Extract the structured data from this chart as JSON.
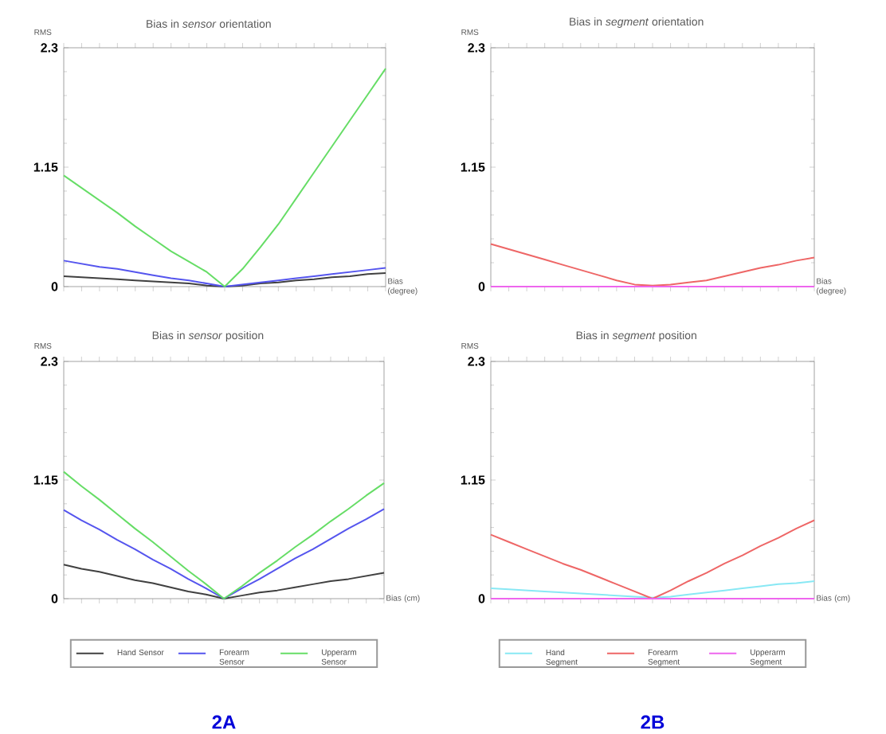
{
  "chart_data": [
    {
      "type": "line",
      "title": "Bias in *sensor* orientation",
      "ylabel": "RMS",
      "xlabel": "Bias (degree)",
      "categories": [
        null,
        null,
        null,
        null,
        null,
        null,
        null,
        null,
        null,
        null,
        null,
        null,
        null,
        null,
        null,
        null,
        null,
        null,
        null
      ],
      "ylim": [
        0,
        2.3
      ],
      "yticks": [
        0,
        1.15,
        2.3
      ],
      "legend": false,
      "series": [
        {
          "color": "#404040",
          "values": [
            0.1,
            0.09,
            0.08,
            0.07,
            0.06,
            0.05,
            0.04,
            0.03,
            0.01,
            0,
            0.01,
            0.03,
            0.04,
            0.06,
            0.07,
            0.09,
            0.1,
            0.12,
            0.13
          ]
        },
        {
          "color": "#5555ee",
          "values": [
            0.25,
            0.22,
            0.19,
            0.17,
            0.14,
            0.11,
            0.08,
            0.06,
            0.03,
            0,
            0.02,
            0.04,
            0.06,
            0.08,
            0.1,
            0.12,
            0.14,
            0.16,
            0.18
          ]
        },
        {
          "color": "#66dd66",
          "values": [
            1.07,
            0.95,
            0.83,
            0.71,
            0.58,
            0.46,
            0.34,
            0.24,
            0.14,
            0,
            0.17,
            0.38,
            0.6,
            0.85,
            1.1,
            1.35,
            1.6,
            1.85,
            2.1
          ]
        }
      ]
    },
    {
      "type": "line",
      "title": "Bias in *segment* orientation",
      "ylabel": "RMS",
      "xlabel": "Bias (degree)",
      "categories": [
        null,
        null,
        null,
        null,
        null,
        null,
        null,
        null,
        null,
        null,
        null,
        null,
        null,
        null,
        null,
        null,
        null,
        null,
        null
      ],
      "ylim": [
        0,
        2.3
      ],
      "yticks": [
        0,
        1.15,
        2.3
      ],
      "legend": false,
      "series": [
        {
          "color": "#ee6666",
          "values": [
            0.41,
            0.36,
            0.31,
            0.26,
            0.21,
            0.16,
            0.11,
            0.06,
            0.02,
            0.01,
            0.02,
            0.04,
            0.06,
            0.1,
            0.14,
            0.18,
            0.21,
            0.25,
            0.28
          ]
        },
        {
          "color": "#ee66ee",
          "values": [
            0,
            0,
            0,
            0,
            0,
            0,
            0,
            0,
            0,
            0,
            0,
            0,
            0,
            0,
            0,
            0,
            0,
            0,
            0
          ]
        }
      ]
    },
    {
      "type": "line",
      "title": "Bias in *sensor* position",
      "ylabel": "RMS",
      "xlabel": "Bias (cm)",
      "categories": [
        null,
        null,
        null,
        null,
        null,
        null,
        null,
        null,
        null,
        null,
        null,
        null,
        null,
        null,
        null,
        null,
        null,
        null,
        null
      ],
      "ylim": [
        0,
        2.3
      ],
      "yticks": [
        0,
        1.15,
        2.3
      ],
      "legend": "bottom",
      "annotations": [
        "2A"
      ],
      "series": [
        {
          "name": "Hand Sensor",
          "color": "#404040",
          "values": [
            0.33,
            0.29,
            0.26,
            0.22,
            0.18,
            0.15,
            0.11,
            0.07,
            0.04,
            0,
            0.03,
            0.06,
            0.08,
            0.11,
            0.14,
            0.17,
            0.19,
            0.22,
            0.25
          ]
        },
        {
          "name": "Forearm Sensor",
          "color": "#5555ee",
          "values": [
            0.86,
            0.76,
            0.67,
            0.57,
            0.48,
            0.38,
            0.29,
            0.19,
            0.1,
            0,
            0.1,
            0.19,
            0.29,
            0.39,
            0.48,
            0.58,
            0.68,
            0.77,
            0.87
          ]
        },
        {
          "name": "Upperarm Sensor",
          "color": "#66dd66",
          "values": [
            1.23,
            1.09,
            0.96,
            0.82,
            0.68,
            0.55,
            0.41,
            0.27,
            0.14,
            0,
            0.12,
            0.25,
            0.37,
            0.5,
            0.62,
            0.75,
            0.87,
            1.0,
            1.12
          ]
        }
      ]
    },
    {
      "type": "line",
      "title": "Bias in *segment* position",
      "ylabel": "RMS",
      "xlabel": "Bias (cm)",
      "categories": [
        null,
        null,
        null,
        null,
        null,
        null,
        null,
        null,
        null,
        null,
        null,
        null,
        null,
        null,
        null,
        null,
        null,
        null,
        null
      ],
      "ylim": [
        0,
        2.3
      ],
      "yticks": [
        0,
        1.15,
        2.3
      ],
      "legend": "bottom",
      "annotations": [
        "2B"
      ],
      "series": [
        {
          "name": "Hand Segment",
          "color": "#88e8f4",
          "values": [
            0.1,
            0.09,
            0.08,
            0.07,
            0.06,
            0.05,
            0.04,
            0.03,
            0.02,
            0.01,
            0.02,
            0.04,
            0.06,
            0.08,
            0.1,
            0.12,
            0.14,
            0.15,
            0.17
          ]
        },
        {
          "name": "Forearm Segment",
          "color": "#ee6666",
          "values": [
            0.62,
            0.55,
            0.48,
            0.41,
            0.34,
            0.28,
            0.21,
            0.14,
            0.07,
            0,
            0.08,
            0.17,
            0.25,
            0.34,
            0.42,
            0.51,
            0.59,
            0.68,
            0.76
          ]
        },
        {
          "name": "Upperarm Segment",
          "color": "#ee66ee",
          "values": [
            0,
            0,
            0,
            0,
            0,
            0,
            0,
            0,
            0,
            0,
            0,
            0,
            0,
            0,
            0,
            0,
            0,
            0,
            0
          ]
        }
      ]
    }
  ]
}
